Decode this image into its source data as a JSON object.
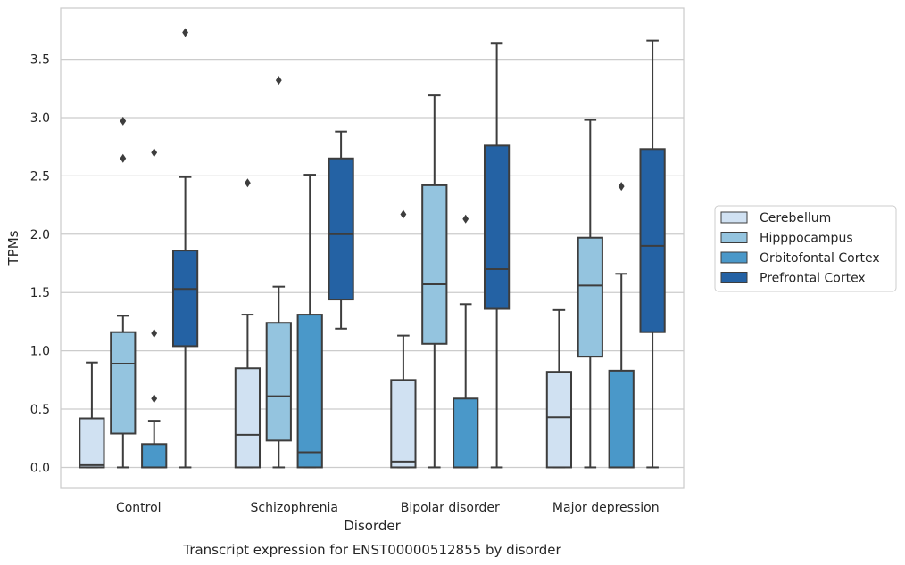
{
  "chart_data": {
    "type": "box",
    "caption": "Transcript expression for ENST00000512855 by disorder",
    "xlabel": "Disorder",
    "ylabel": "TPMs",
    "ylim": [
      -0.18,
      3.94
    ],
    "yticks": [
      "0.0",
      "0.5",
      "1.0",
      "1.5",
      "2.0",
      "2.5",
      "3.0",
      "3.5"
    ],
    "grid": "horizontal",
    "legend_position": "right",
    "categories": [
      "Control",
      "Schizophrenia",
      "Bipolar disorder",
      "Major depression"
    ],
    "series": [
      {
        "name": "Cerebellum",
        "color": "#d0e1f2",
        "boxes": [
          {
            "whislo": 0.0,
            "q1": 0.0,
            "med": 0.02,
            "q3": 0.42,
            "whishi": 0.9,
            "fliers": []
          },
          {
            "whislo": 0.0,
            "q1": 0.0,
            "med": 0.28,
            "q3": 0.85,
            "whishi": 1.31,
            "fliers": [
              2.44
            ]
          },
          {
            "whislo": 0.0,
            "q1": 0.0,
            "med": 0.05,
            "q3": 0.75,
            "whishi": 1.13,
            "fliers": [
              2.17
            ]
          },
          {
            "whislo": 0.0,
            "q1": 0.0,
            "med": 0.43,
            "q3": 0.82,
            "whishi": 1.35,
            "fliers": []
          }
        ]
      },
      {
        "name": "Hipppocampus",
        "color": "#94c4df",
        "boxes": [
          {
            "whislo": 0.0,
            "q1": 0.29,
            "med": 0.89,
            "q3": 1.16,
            "whishi": 1.3,
            "fliers": [
              2.65,
              2.97
            ]
          },
          {
            "whislo": 0.0,
            "q1": 0.23,
            "med": 0.61,
            "q3": 1.24,
            "whishi": 1.55,
            "fliers": [
              3.32
            ]
          },
          {
            "whislo": 0.0,
            "q1": 1.06,
            "med": 1.57,
            "q3": 2.42,
            "whishi": 3.19,
            "fliers": []
          },
          {
            "whislo": 0.0,
            "q1": 0.95,
            "med": 1.56,
            "q3": 1.97,
            "whishi": 2.98,
            "fliers": []
          }
        ]
      },
      {
        "name": "Orbitofontal Cortex",
        "color": "#4a98c9",
        "boxes": [
          {
            "whislo": 0.0,
            "q1": 0.0,
            "med": 0.0,
            "q3": 0.2,
            "whishi": 0.4,
            "fliers": [
              0.59,
              1.15,
              2.7
            ]
          },
          {
            "whislo": 0.0,
            "q1": 0.0,
            "med": 0.13,
            "q3": 1.31,
            "whishi": 2.51,
            "fliers": []
          },
          {
            "whislo": 0.0,
            "q1": 0.0,
            "med": 0.0,
            "q3": 0.59,
            "whishi": 1.4,
            "fliers": [
              2.13
            ]
          },
          {
            "whislo": 0.0,
            "q1": 0.0,
            "med": 0.0,
            "q3": 0.83,
            "whishi": 1.66,
            "fliers": [
              2.41
            ]
          }
        ]
      },
      {
        "name": "Prefrontal Cortex",
        "color": "#2462a4",
        "boxes": [
          {
            "whislo": 0.0,
            "q1": 1.04,
            "med": 1.53,
            "q3": 1.86,
            "whishi": 2.49,
            "fliers": [
              3.73
            ]
          },
          {
            "whislo": 1.19,
            "q1": 1.44,
            "med": 2.0,
            "q3": 2.65,
            "whishi": 2.88,
            "fliers": []
          },
          {
            "whislo": 0.0,
            "q1": 1.36,
            "med": 1.7,
            "q3": 2.76,
            "whishi": 3.64,
            "fliers": []
          },
          {
            "whislo": 0.0,
            "q1": 1.16,
            "med": 1.9,
            "q3": 2.73,
            "whishi": 3.66,
            "fliers": []
          }
        ]
      }
    ]
  }
}
